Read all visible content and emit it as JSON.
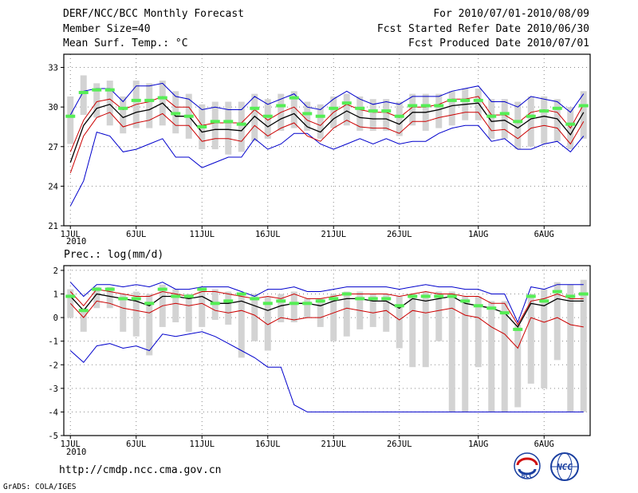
{
  "header": {
    "title": "DERF/NCC/BCC Monthly Forecast",
    "member_size": "Member Size=40",
    "variable": "Mean Surf. Temp.: °C",
    "period": "For 2010/07/01-2010/08/09",
    "fcst_started": "Fcst Started Refer Date 2010/06/30",
    "fcst_produced": "Fcst Produced Date 2010/07/01"
  },
  "footer": {
    "url": "http://cmdp.ncc.cma.gov.cn",
    "credit": "GrADS: COLA/IGES",
    "logo_left": "BCC",
    "logo_right": "NCC"
  },
  "colors": {
    "box": "#d3d3d3",
    "marker": "#55ee55",
    "envelope": "#0000cc",
    "spread": "#cc0000",
    "mean": "#000000",
    "grid": "#888888"
  },
  "chart_data": [
    {
      "type": "line",
      "title": "Mean Surf. Temp.: °C",
      "x_tick_labels": [
        "1JUL",
        "6JUL",
        "11JUL",
        "16JUL",
        "21JUL",
        "26JUL",
        "1AUG",
        "6AUG"
      ],
      "x_tick_days": [
        1,
        6,
        11,
        16,
        21,
        26,
        32,
        37
      ],
      "x_year_label": "2010",
      "x_range": [
        0.5,
        40.5
      ],
      "ylim": [
        21,
        34
      ],
      "y_ticks": [
        21,
        24,
        27,
        30,
        33
      ],
      "days": [
        1,
        2,
        3,
        4,
        5,
        6,
        7,
        8,
        9,
        10,
        11,
        12,
        13,
        14,
        15,
        16,
        17,
        18,
        19,
        20,
        21,
        22,
        23,
        24,
        25,
        26,
        27,
        28,
        29,
        30,
        31,
        32,
        33,
        34,
        35,
        36,
        37,
        38,
        39,
        40
      ],
      "series": [
        {
          "name": "max",
          "values": [
            29.4,
            31.2,
            31.4,
            31.4,
            30.4,
            31.6,
            31.6,
            31.8,
            30.8,
            30.6,
            29.8,
            30.0,
            29.8,
            29.8,
            30.8,
            30.2,
            30.6,
            31.0,
            30.0,
            29.8,
            30.6,
            31.2,
            30.6,
            30.2,
            30.4,
            30.2,
            30.8,
            30.8,
            30.8,
            31.2,
            31.4,
            31.6,
            30.4,
            30.4,
            30.0,
            30.8,
            30.6,
            30.4,
            29.6,
            31.0
          ]
        },
        {
          "name": "upper",
          "values": [
            26.6,
            29.0,
            30.4,
            30.6,
            29.8,
            30.2,
            30.4,
            30.8,
            30.0,
            30.0,
            28.6,
            28.8,
            28.8,
            28.8,
            29.8,
            29.0,
            29.6,
            30.0,
            29.0,
            28.6,
            29.6,
            30.2,
            29.8,
            29.6,
            29.6,
            29.2,
            30.0,
            30.0,
            30.2,
            30.6,
            30.6,
            30.8,
            29.4,
            29.4,
            28.8,
            29.6,
            29.8,
            29.6,
            28.4,
            30.2
          ]
        },
        {
          "name": "mean",
          "values": [
            25.8,
            28.6,
            29.9,
            30.2,
            29.2,
            29.6,
            29.8,
            30.3,
            29.3,
            29.3,
            28.1,
            28.3,
            28.3,
            28.2,
            29.3,
            28.5,
            29.1,
            29.5,
            28.5,
            28.1,
            29.1,
            29.7,
            29.2,
            29.1,
            29.1,
            28.7,
            29.6,
            29.6,
            29.8,
            30.1,
            30.2,
            30.3,
            28.9,
            29.0,
            28.4,
            29.1,
            29.3,
            29.1,
            27.9,
            29.6
          ]
        },
        {
          "name": "lower",
          "values": [
            25.0,
            27.8,
            29.2,
            29.6,
            28.5,
            28.8,
            29.0,
            29.5,
            28.6,
            28.6,
            27.4,
            27.6,
            27.6,
            27.4,
            28.6,
            27.8,
            28.4,
            28.8,
            27.8,
            27.4,
            28.4,
            29.0,
            28.5,
            28.4,
            28.4,
            28.0,
            28.9,
            28.9,
            29.2,
            29.4,
            29.6,
            29.6,
            28.2,
            28.3,
            27.6,
            28.4,
            28.6,
            28.4,
            27.2,
            28.9
          ]
        },
        {
          "name": "min",
          "values": [
            22.5,
            24.4,
            28.1,
            27.8,
            26.6,
            26.8,
            27.2,
            27.6,
            26.2,
            26.2,
            25.4,
            25.8,
            26.2,
            26.2,
            27.6,
            26.8,
            27.2,
            28.0,
            28.0,
            27.2,
            26.8,
            27.2,
            27.6,
            27.2,
            27.6,
            27.2,
            27.4,
            27.4,
            28.0,
            28.4,
            28.6,
            28.6,
            27.4,
            27.6,
            26.8,
            26.8,
            27.2,
            27.4,
            26.6,
            27.8
          ]
        },
        {
          "name": "box_low",
          "values": [
            27.2,
            29.4,
            29.2,
            28.6,
            28.0,
            28.4,
            28.4,
            28.6,
            28.0,
            27.6,
            26.8,
            26.8,
            26.4,
            26.6,
            27.4,
            27.6,
            28.2,
            28.4,
            28.2,
            27.6,
            28.4,
            28.6,
            28.2,
            28.2,
            28.2,
            27.8,
            28.6,
            28.2,
            28.4,
            28.6,
            29.0,
            29.0,
            27.6,
            27.6,
            26.8,
            27.0,
            27.2,
            27.4,
            26.8,
            27.6
          ]
        },
        {
          "name": "box_high",
          "values": [
            30.8,
            32.4,
            31.8,
            32.0,
            30.8,
            32.0,
            31.8,
            32.0,
            31.2,
            31.0,
            30.2,
            30.4,
            30.4,
            30.4,
            31.0,
            30.6,
            31.0,
            31.2,
            30.4,
            30.2,
            30.8,
            31.0,
            30.8,
            30.6,
            30.6,
            30.4,
            31.0,
            31.0,
            31.0,
            31.2,
            31.4,
            31.4,
            30.6,
            30.6,
            30.4,
            30.8,
            30.8,
            30.6,
            30.0,
            31.2
          ]
        },
        {
          "name": "observed_marker",
          "values": [
            29.3,
            31.1,
            31.3,
            31.3,
            29.9,
            30.5,
            30.5,
            30.7,
            29.5,
            29.3,
            28.5,
            28.9,
            28.9,
            28.7,
            29.9,
            29.3,
            30.1,
            30.7,
            29.5,
            29.3,
            29.9,
            30.3,
            29.9,
            29.7,
            29.7,
            29.3,
            30.1,
            30.1,
            30.1,
            30.5,
            30.5,
            30.5,
            29.3,
            29.5,
            28.9,
            29.3,
            29.7,
            29.9,
            28.7,
            30.1
          ]
        }
      ]
    },
    {
      "type": "line",
      "title": "Prec.: log(mm/d)",
      "x_tick_labels": [
        "1JUL",
        "6JUL",
        "11JUL",
        "16JUL",
        "21JUL",
        "26JUL",
        "1AUG",
        "6AUG"
      ],
      "x_tick_days": [
        1,
        6,
        11,
        16,
        21,
        26,
        32,
        37
      ],
      "x_year_label": "2010",
      "x_range": [
        0.5,
        40.5
      ],
      "ylim": [
        -5,
        2.2
      ],
      "y_ticks": [
        -5,
        -4,
        -3,
        -2,
        -1,
        0,
        1,
        2
      ],
      "days": [
        1,
        2,
        3,
        4,
        5,
        6,
        7,
        8,
        9,
        10,
        11,
        12,
        13,
        14,
        15,
        16,
        17,
        18,
        19,
        20,
        21,
        22,
        23,
        24,
        25,
        26,
        27,
        28,
        29,
        30,
        31,
        32,
        33,
        34,
        35,
        36,
        37,
        38,
        39,
        40
      ],
      "series": [
        {
          "name": "max",
          "values": [
            1.5,
            0.9,
            1.4,
            1.4,
            1.3,
            1.4,
            1.3,
            1.5,
            1.2,
            1.2,
            1.3,
            1.3,
            1.3,
            1.1,
            0.9,
            1.2,
            1.2,
            1.3,
            1.1,
            1.1,
            1.2,
            1.3,
            1.3,
            1.3,
            1.3,
            1.2,
            1.3,
            1.4,
            1.3,
            1.3,
            1.2,
            1.2,
            1.0,
            1.0,
            -0.2,
            1.3,
            1.2,
            1.4,
            1.4,
            1.4
          ]
        },
        {
          "name": "upper",
          "values": [
            1.1,
            0.5,
            1.2,
            1.1,
            1.0,
            0.9,
            0.9,
            1.1,
            1.0,
            0.9,
            1.1,
            1.1,
            1.0,
            0.9,
            0.8,
            0.9,
            0.8,
            1.0,
            0.8,
            0.8,
            0.9,
            1.0,
            1.0,
            1.0,
            1.0,
            0.9,
            1.0,
            1.1,
            1.0,
            1.0,
            0.9,
            0.9,
            0.6,
            0.6,
            -0.3,
            0.7,
            0.8,
            1.0,
            0.8,
            0.8
          ]
        },
        {
          "name": "mean",
          "values": [
            0.9,
            0.3,
            1.0,
            0.9,
            0.8,
            0.7,
            0.5,
            0.9,
            0.9,
            0.8,
            0.9,
            0.6,
            0.6,
            0.7,
            0.5,
            0.3,
            0.5,
            0.6,
            0.6,
            0.5,
            0.7,
            0.8,
            0.8,
            0.7,
            0.7,
            0.4,
            0.8,
            0.7,
            0.8,
            0.9,
            0.6,
            0.5,
            0.4,
            0.2,
            -0.4,
            0.6,
            0.5,
            0.8,
            0.7,
            0.7
          ]
        },
        {
          "name": "lower",
          "values": [
            0.6,
            0.0,
            0.7,
            0.6,
            0.4,
            0.3,
            0.2,
            0.5,
            0.6,
            0.5,
            0.6,
            0.3,
            0.2,
            0.3,
            0.1,
            -0.3,
            0.0,
            -0.1,
            0.0,
            0.0,
            0.2,
            0.4,
            0.3,
            0.2,
            0.3,
            -0.1,
            0.3,
            0.2,
            0.3,
            0.4,
            0.1,
            0.0,
            -0.4,
            -0.7,
            -1.3,
            0.0,
            -0.2,
            0.0,
            -0.3,
            -0.4
          ]
        },
        {
          "name": "min",
          "values": [
            -1.4,
            -1.9,
            -1.2,
            -1.1,
            -1.3,
            -1.2,
            -1.4,
            -0.7,
            -0.8,
            -0.7,
            -0.6,
            -0.8,
            -1.1,
            -1.4,
            -1.7,
            -2.1,
            -2.1,
            -3.7,
            -4.0,
            -4.0,
            -4.0,
            -4.0,
            -4.0,
            -4.0,
            -4.0,
            -4.0,
            -4.0,
            -4.0,
            -4.0,
            -4.0,
            -4.0,
            -4.0,
            -4.0,
            -4.0,
            -4.0,
            -4.0,
            -4.0,
            -4.0,
            -4.0,
            -4.0
          ]
        },
        {
          "name": "box_low",
          "values": [
            0.0,
            -0.6,
            0.4,
            0.4,
            -0.6,
            -0.8,
            -1.6,
            -0.4,
            -0.2,
            -0.6,
            -0.4,
            -0.1,
            -0.3,
            -1.7,
            -1.0,
            -1.4,
            -0.2,
            -0.2,
            0.0,
            -0.4,
            -1.0,
            -0.8,
            -0.5,
            -0.4,
            -0.6,
            -1.3,
            -2.1,
            -2.1,
            -1.0,
            -4.0,
            -4.0,
            -2.1,
            -4.0,
            -4.0,
            -3.8,
            -2.8,
            -3.0,
            -1.8,
            -4.0,
            -4.0
          ]
        },
        {
          "name": "box_high",
          "values": [
            1.2,
            0.4,
            1.3,
            1.3,
            1.0,
            1.1,
            1.0,
            1.4,
            1.2,
            1.0,
            1.2,
            1.2,
            1.1,
            1.0,
            1.0,
            0.9,
            1.0,
            1.1,
            0.8,
            0.8,
            1.0,
            1.1,
            1.1,
            1.0,
            1.0,
            0.9,
            1.0,
            1.1,
            1.1,
            1.1,
            0.9,
            0.9,
            0.7,
            0.7,
            -0.3,
            1.0,
            1.2,
            1.5,
            1.4,
            1.6
          ]
        },
        {
          "name": "observed_marker",
          "values": [
            0.9,
            0.3,
            1.2,
            1.2,
            0.8,
            0.8,
            0.6,
            1.2,
            0.9,
            0.9,
            1.2,
            0.6,
            0.7,
            1.0,
            0.8,
            0.6,
            0.7,
            0.6,
            0.6,
            0.7,
            0.8,
            1.0,
            0.8,
            0.8,
            0.8,
            0.5,
            0.9,
            0.9,
            0.9,
            0.9,
            0.7,
            0.5,
            0.4,
            0.2,
            -0.5,
            0.9,
            0.7,
            1.1,
            0.9,
            1.0
          ]
        }
      ]
    }
  ]
}
